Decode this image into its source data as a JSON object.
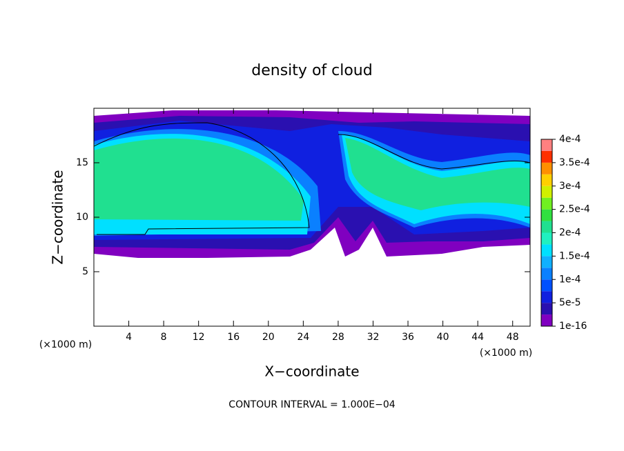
{
  "chart_data": {
    "type": "contour",
    "title": "density of cloud",
    "x_label": "X−coordinate",
    "y_label": "Z−coordinate",
    "x_unit": "(×1000 m)",
    "footnote": "CONTOUR INTERVAL = 1.000E−04",
    "xlim": [
      0,
      50
    ],
    "xticks": [
      4,
      8,
      12,
      16,
      20,
      24,
      28,
      32,
      36,
      40,
      44,
      48
    ],
    "ylim": [
      0,
      20
    ],
    "yticks": [
      5,
      10,
      15
    ],
    "colorbar": {
      "clim": [
        1e-16,
        0.0004
      ],
      "colors": [
        "#8000c0",
        "#2a10b0",
        "#1020e0",
        "#0050ff",
        "#0a80ff",
        "#10b0ff",
        "#00e0ff",
        "#20f0c0",
        "#20e090",
        "#30e040",
        "#70f020",
        "#d0f000",
        "#ffd000",
        "#ff9000",
        "#ff3000",
        "#ff8080"
      ],
      "ticks": [
        {
          "value": 1e-16,
          "label": "1e-16"
        },
        {
          "value": 5e-05,
          "label": "5e-5"
        },
        {
          "value": 0.0001,
          "label": "1e-4"
        },
        {
          "value": 0.00015,
          "label": "1.5e-4"
        },
        {
          "value": 0.0002,
          "label": "2e-4"
        },
        {
          "value": 0.00025,
          "label": "2.5e-4"
        },
        {
          "value": 0.0003,
          "label": "3e-4"
        },
        {
          "value": 0.00035,
          "label": "3.5e-4"
        },
        {
          "value": 0.0004,
          "label": "4e-4"
        }
      ]
    }
  }
}
